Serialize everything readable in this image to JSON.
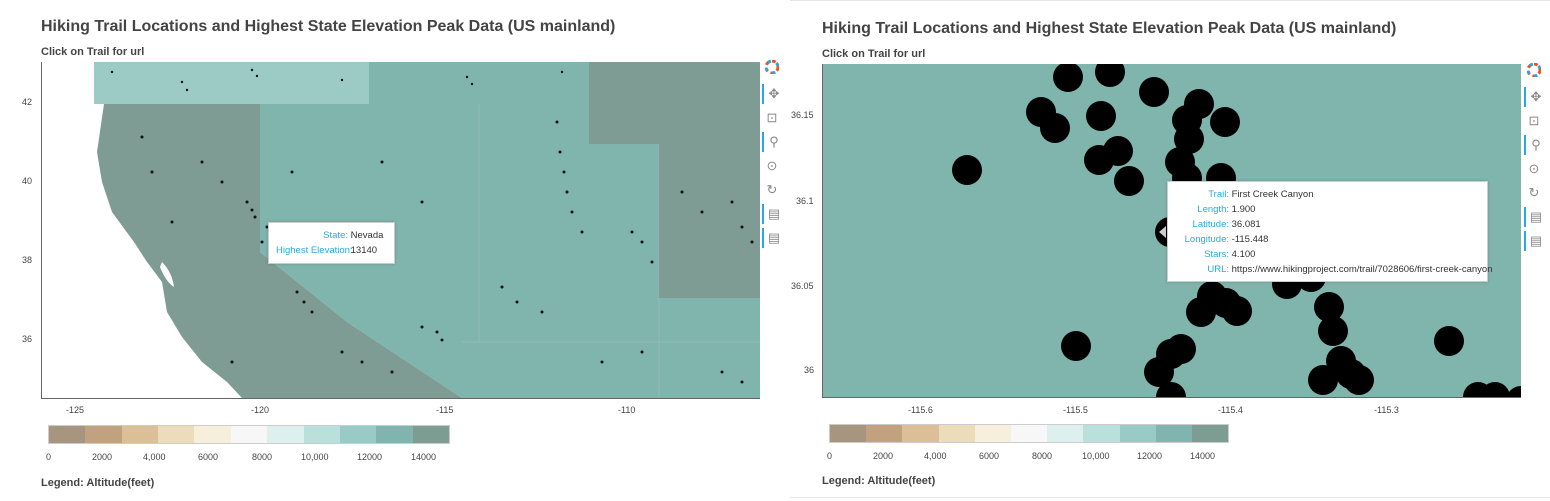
{
  "left": {
    "title": "Hiking Trail Locations and Highest State Elevation Peak Data (US mainland)",
    "subtitle": "Click on Trail for url",
    "x_ticks": [
      "-125",
      "-120",
      "-115",
      "-110"
    ],
    "y_ticks": [
      "42",
      "40",
      "38",
      "36"
    ],
    "tooltip": {
      "state_key": "State:",
      "state_val": "Nevada",
      "elev_key": "Highest Elevation:",
      "elev_val": "13140"
    },
    "colorbar_ticks": [
      "0",
      "2000",
      "4,000",
      "6000",
      "8000",
      "10,000",
      "12000",
      "14000"
    ],
    "legend": "Legend: Altitude(feet)"
  },
  "right": {
    "title": "Hiking Trail Locations and Highest State Elevation Peak Data (US mainland)",
    "subtitle": "Click on Trail for url",
    "x_ticks": [
      "-115.6",
      "-115.5",
      "-115.4",
      "-115.3"
    ],
    "y_ticks": [
      "36.15",
      "36.1",
      "36.05",
      "36"
    ],
    "tooltip": {
      "trail_key": "Trail:",
      "trail_val": "First Creek Canyon",
      "length_key": "Length:",
      "length_val": "1.900",
      "lat_key": "Latitude:",
      "lat_val": "36.081",
      "lon_key": "Longitude:",
      "lon_val": "-115.448",
      "stars_key": "Stars:",
      "stars_val": "4.100",
      "url_key": "URL:",
      "url_val": "https://www.hikingproject.com/trail/7028606/first-creek-canyon"
    },
    "colorbar_ticks": [
      "0",
      "2000",
      "4,000",
      "6000",
      "8000",
      "10,000",
      "12000",
      "14000"
    ],
    "legend": "Legend: Altitude(feet)"
  },
  "toolbar_icons": [
    "bokeh-logo-icon",
    "pan-icon",
    "box-zoom-icon",
    "wheel-zoom-icon",
    "zoom-reset-icon",
    "refresh-icon",
    "hover-icon",
    "hover-icon-2"
  ],
  "colors": {
    "colorbar": [
      "#a89580",
      "#c2a17f",
      "#dcbf97",
      "#ecdcb9",
      "#f6efdc",
      "#f7f7f7",
      "#def0ee",
      "#b9e0db",
      "#98cbc6",
      "#7fb5ae",
      "#7d9c92"
    ],
    "nevada": "#80b5ad",
    "california": "#7e9c93",
    "oregon": "#9ccbc6",
    "idaho": "#80b5ad",
    "wyoming": "#7e9c93",
    "accent": "#26aae1"
  }
}
